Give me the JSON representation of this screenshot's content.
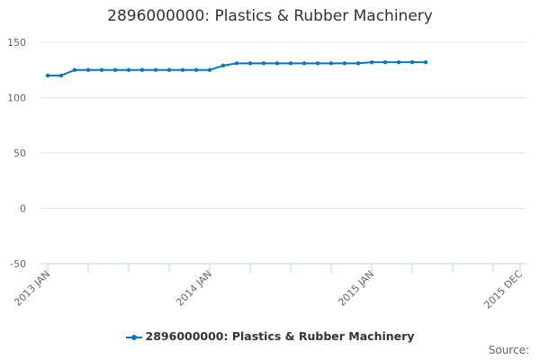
{
  "chart_data": {
    "type": "line",
    "title": "2896000000: Plastics & Rubber Machinery",
    "xlabel": "",
    "ylabel": "",
    "ylim": [
      -50,
      150
    ],
    "yticks": [
      150,
      100,
      50,
      0,
      -50
    ],
    "x_range": [
      "2013-01",
      "2015-12"
    ],
    "x_tick_labels": [
      {
        "month": "2013-01",
        "label": "2013 JAN"
      },
      {
        "month": "2014-01",
        "label": "2014 JAN"
      },
      {
        "month": "2015-01",
        "label": "2015 JAN"
      },
      {
        "month": "2015-12",
        "label": "2015 DEC"
      }
    ],
    "grid": true,
    "legend_position": "bottom",
    "series": [
      {
        "name": "2896000000: Plastics & Rubber Machinery",
        "color": "#0079c1",
        "x": [
          "2013-01",
          "2013-02",
          "2013-03",
          "2013-04",
          "2013-05",
          "2013-06",
          "2013-07",
          "2013-08",
          "2013-09",
          "2013-10",
          "2013-11",
          "2013-12",
          "2014-01",
          "2014-02",
          "2014-03",
          "2014-04",
          "2014-05",
          "2014-06",
          "2014-07",
          "2014-08",
          "2014-09",
          "2014-10",
          "2014-11",
          "2014-12",
          "2015-01",
          "2015-02",
          "2015-03",
          "2015-04",
          "2015-05"
        ],
        "values": [
          120,
          120,
          125,
          125,
          125,
          125,
          125,
          125,
          125,
          125,
          125,
          125,
          125,
          129,
          131,
          131,
          131,
          131,
          131,
          131,
          131,
          131,
          131,
          131,
          132,
          132,
          132,
          132,
          132
        ]
      }
    ]
  },
  "source_label": "Source:"
}
